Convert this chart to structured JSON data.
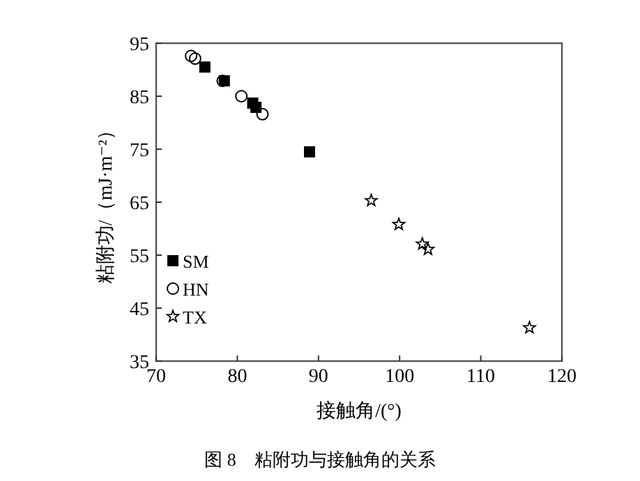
{
  "chart_data": {
    "type": "scatter",
    "xlabel": "接触角/(°)",
    "ylabel": "粘附功/（mJ·m⁻²）",
    "xlim": [
      70,
      120
    ],
    "xticks": [
      70,
      80,
      90,
      100,
      110,
      120
    ],
    "ylim": [
      35,
      95
    ],
    "yticks": [
      35,
      45,
      55,
      65,
      75,
      85,
      95
    ],
    "legend": "bottom left",
    "grid": false,
    "annotations": [
      "图 8　粘附功与接触角的关系"
    ],
    "series": [
      {
        "name": "SM",
        "color": "#000000",
        "marker": "square",
        "x": [
          76.0,
          78.4,
          81.9,
          82.3,
          88.9
        ],
        "values": [
          90.5,
          87.9,
          83.7,
          82.9,
          74.5
        ]
      },
      {
        "name": "HN",
        "color": "#000000",
        "marker": "circle",
        "x": [
          74.3,
          74.8,
          78.2,
          80.5,
          83.1
        ],
        "values": [
          92.6,
          92.1,
          87.9,
          85.0,
          81.6
        ]
      },
      {
        "name": "TX",
        "color": "#000000",
        "marker": "star",
        "x": [
          96.5,
          99.9,
          102.8,
          103.5,
          116.0
        ],
        "values": [
          65.3,
          60.8,
          57.1,
          56.1,
          41.3
        ]
      }
    ]
  }
}
